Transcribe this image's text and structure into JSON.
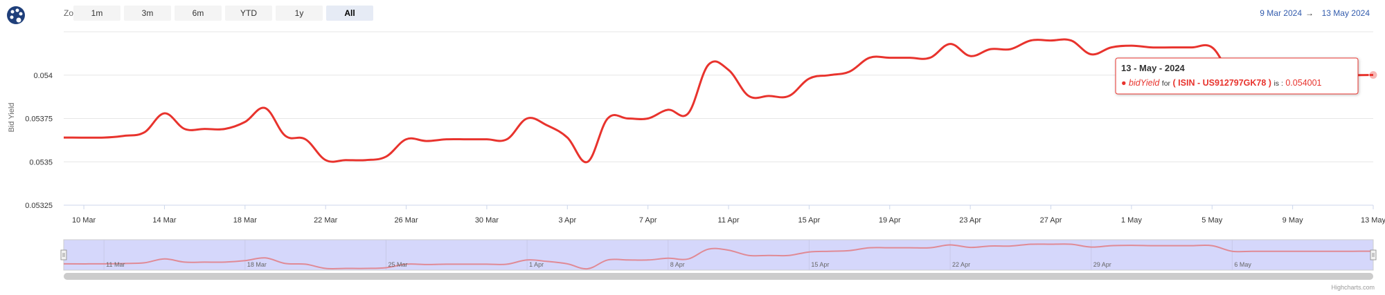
{
  "menu": {
    "icon": "palette-icon"
  },
  "range_selector": {
    "zoom_label": "Zoom",
    "buttons": [
      "1m",
      "3m",
      "6m",
      "YTD",
      "1y",
      "All"
    ],
    "selected": "All"
  },
  "date_range": {
    "from": "9 Mar 2024",
    "arrow": "→",
    "to": "13 May 2024"
  },
  "credits": "Highcharts.com",
  "colors": {
    "series": "#e8332d",
    "navigator_fill": "#d5d7fb",
    "navigator_line": "#e08a95",
    "date_range": "#335cad"
  },
  "tooltip": {
    "date": "13 - May - 2024",
    "series_name": "bidYield",
    "for_text": "for",
    "isin_label": "( ISIN - US912797GK78 )",
    "is_text": "is :",
    "value": "0.054001"
  },
  "chart_data": {
    "type": "line",
    "title": "",
    "xlabel": "",
    "ylabel": "Bid Yield",
    "x_range": [
      "2024-03-09",
      "2024-05-13"
    ],
    "ylim": [
      0.05325,
      0.05425
    ],
    "y_ticks": [
      "0.054",
      "0.05375",
      "0.0535",
      "0.05325"
    ],
    "x_ticks": [
      "10 Mar",
      "14 Mar",
      "18 Mar",
      "22 Mar",
      "26 Mar",
      "30 Mar",
      "3 Apr",
      "7 Apr",
      "11 Apr",
      "15 Apr",
      "19 Apr",
      "23 Apr",
      "27 Apr",
      "1 May",
      "5 May",
      "9 May",
      "13 May"
    ],
    "navigator_ticks": [
      "11 Mar",
      "18 Mar",
      "25 Mar",
      "1 Apr",
      "8 Apr",
      "15 Apr",
      "22 Apr",
      "29 Apr",
      "6 May"
    ],
    "series": [
      {
        "points": [
          [
            "2024-03-09",
            0.05364
          ],
          [
            "2024-03-11",
            0.05364
          ],
          [
            "2024-03-12",
            0.05365
          ],
          [
            "2024-03-13",
            0.05367
          ],
          [
            "2024-03-14",
            0.05378
          ],
          [
            "2024-03-15",
            0.05369
          ],
          [
            "2024-03-16",
            0.05369
          ],
          [
            "2024-03-17",
            0.05369
          ],
          [
            "2024-03-18",
            0.05373
          ],
          [
            "2024-03-19",
            0.05381
          ],
          [
            "2024-03-20",
            0.05365
          ],
          [
            "2024-03-21",
            0.05363
          ],
          [
            "2024-03-22",
            0.05351
          ],
          [
            "2024-03-23",
            0.05351
          ],
          [
            "2024-03-24",
            0.05351
          ],
          [
            "2024-03-25",
            0.05353
          ],
          [
            "2024-03-26",
            0.05363
          ],
          [
            "2024-03-27",
            0.05362
          ],
          [
            "2024-03-28",
            0.05363
          ],
          [
            "2024-03-29",
            0.05363
          ],
          [
            "2024-03-30",
            0.05363
          ],
          [
            "2024-03-31",
            0.05363
          ],
          [
            "2024-04-01",
            0.05375
          ],
          [
            "2024-04-02",
            0.05371
          ],
          [
            "2024-04-03",
            0.05364
          ],
          [
            "2024-04-04",
            0.0535
          ],
          [
            "2024-04-05",
            0.05375
          ],
          [
            "2024-04-06",
            0.05375
          ],
          [
            "2024-04-07",
            0.05375
          ],
          [
            "2024-04-08",
            0.0538
          ],
          [
            "2024-04-09",
            0.05378
          ],
          [
            "2024-04-10",
            0.05406
          ],
          [
            "2024-04-11",
            0.05403
          ],
          [
            "2024-04-12",
            0.05388
          ],
          [
            "2024-04-13",
            0.05388
          ],
          [
            "2024-04-14",
            0.05388
          ],
          [
            "2024-04-15",
            0.05398
          ],
          [
            "2024-04-16",
            0.054
          ],
          [
            "2024-04-17",
            0.05402
          ],
          [
            "2024-04-18",
            0.0541
          ],
          [
            "2024-04-19",
            0.0541
          ],
          [
            "2024-04-20",
            0.0541
          ],
          [
            "2024-04-21",
            0.0541
          ],
          [
            "2024-04-22",
            0.05418
          ],
          [
            "2024-04-23",
            0.05411
          ],
          [
            "2024-04-24",
            0.05415
          ],
          [
            "2024-04-25",
            0.05415
          ],
          [
            "2024-04-26",
            0.0542
          ],
          [
            "2024-04-27",
            0.0542
          ],
          [
            "2024-04-28",
            0.0542
          ],
          [
            "2024-04-29",
            0.05412
          ],
          [
            "2024-04-30",
            0.05416
          ],
          [
            "2024-05-01",
            0.05417
          ],
          [
            "2024-05-02",
            0.05416
          ],
          [
            "2024-05-03",
            0.05416
          ],
          [
            "2024-05-04",
            0.05416
          ],
          [
            "2024-05-05",
            0.05416
          ],
          [
            "2024-05-06",
            0.054
          ],
          [
            "2024-05-07",
            0.054
          ],
          [
            "2024-05-08",
            0.054
          ],
          [
            "2024-05-09",
            0.054
          ],
          [
            "2024-05-10",
            0.054
          ],
          [
            "2024-05-11",
            0.054
          ],
          [
            "2024-05-12",
            0.054
          ],
          [
            "2024-05-13",
            0.054001
          ]
        ]
      }
    ]
  }
}
